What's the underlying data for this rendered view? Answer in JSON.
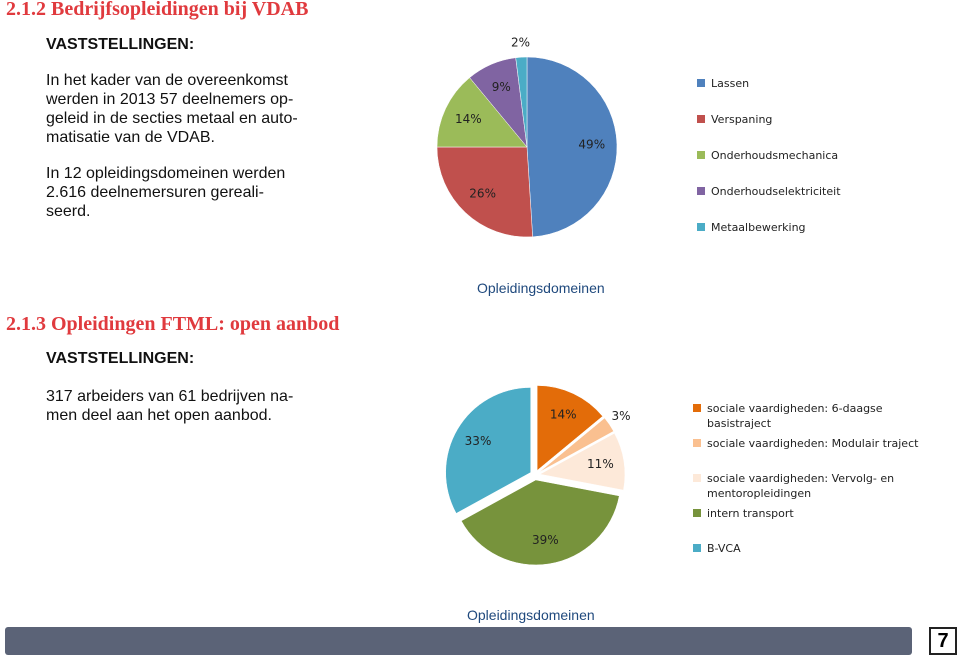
{
  "sections": [
    {
      "heading": "2.1.2 Bedrijfsopleidingen bij VDAB",
      "subheading": "VASTSTELLINGEN:",
      "paragraphs": [
        [
          "In het kader van de overeenkomst",
          "werden in 2013 57 deelnemers op-",
          "geleid in de secties metaal en auto-",
          "matisatie van de VDAB."
        ],
        [
          "In 12 opleidingsdomeinen werden",
          "2.616 deelnemersuren gereali-",
          "seerd."
        ]
      ]
    },
    {
      "heading": "2.1.3 Opleidingen FTML: open aanbod",
      "subheading": "VASTSTELLINGEN:",
      "paragraphs": [
        [
          "317 arbeiders van 61 bedrijven na-",
          "men deel aan het open aanbod."
        ]
      ]
    }
  ],
  "chart_data": [
    {
      "type": "pie",
      "title": "Opleidingsdomeinen",
      "series": [
        {
          "name": "Lassen",
          "color": "#4f81bd"
        },
        {
          "name": "Verspaning",
          "color": "#c0504d"
        },
        {
          "name": "Onderhoudsmechanica",
          "color": "#9bbb59"
        },
        {
          "name": "Onderhoudselektriciteit",
          "color": "#8064a2"
        },
        {
          "name": "Metaalbewerking",
          "color": "#4bacc6"
        }
      ],
      "values": [
        49,
        26,
        14,
        9,
        2
      ],
      "value_labels": [
        "49%",
        "26%",
        "14%",
        "9%",
        "2%"
      ]
    },
    {
      "type": "pie",
      "title": "Opleidingsdomeinen",
      "series": [
        {
          "name": "sociale vaardigheden: 6-daagse basistraject",
          "color": "#e36c09"
        },
        {
          "name": "sociale vaardigheden: Modulair traject",
          "color": "#fac090"
        },
        {
          "name": "sociale vaardigheden: Vervolg- en mentoropleidingen",
          "color": "#fde9d9"
        },
        {
          "name": "intern transport",
          "color": "#77933c"
        },
        {
          "name": "B-VCA",
          "color": "#4bacc6"
        }
      ],
      "values": [
        14,
        3,
        11,
        39,
        33
      ],
      "value_labels": [
        "14%",
        "3%",
        "11%",
        "39%",
        "33%"
      ]
    }
  ],
  "page_number": "7"
}
